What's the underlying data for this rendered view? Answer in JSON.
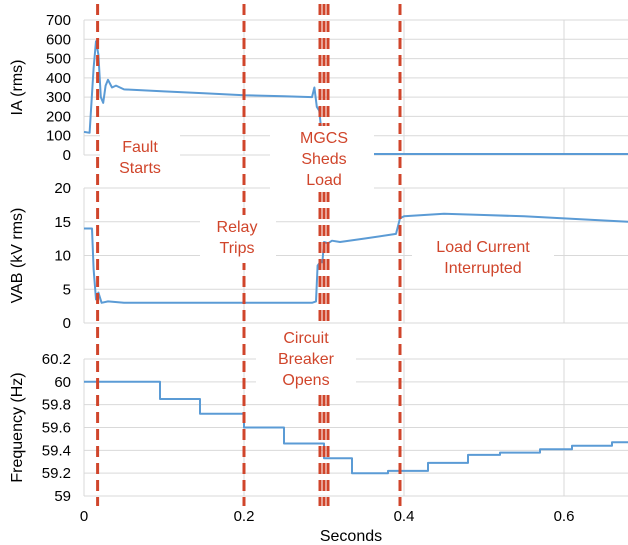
{
  "chart_data": {
    "type": "line",
    "xlabel": "Seconds",
    "x_ticks": [
      0,
      0.2,
      0.4,
      0.6
    ],
    "x_tick_labels": [
      "0",
      "0.2",
      "0.4",
      "0.6"
    ],
    "xlim": [
      0,
      0.68
    ],
    "series_color": "#5b9bd5",
    "event_line_color": "#d0452b",
    "event_times": [
      0.017,
      0.2,
      0.295,
      0.3,
      0.305,
      0.395
    ],
    "annotations": [
      {
        "id": "fault",
        "lines": [
          "Fault",
          "Starts"
        ]
      },
      {
        "id": "relay",
        "lines": [
          "Relay",
          "Trips"
        ]
      },
      {
        "id": "mgcs",
        "lines": [
          "MGCS",
          "Sheds",
          "Load"
        ]
      },
      {
        "id": "breaker",
        "lines": [
          "Circuit",
          "Breaker",
          "Opens"
        ]
      },
      {
        "id": "interrupt",
        "lines": [
          "Load Current",
          "Interrupted"
        ]
      }
    ],
    "panels": [
      {
        "id": "current",
        "ylabel": "IA (rms)",
        "ylim": [
          0,
          700
        ],
        "yticks": [
          0,
          100,
          200,
          300,
          400,
          500,
          600,
          700
        ],
        "ytick_labels": [
          "0",
          "100",
          "200",
          "300",
          "400",
          "500",
          "600",
          "700"
        ],
        "series": [
          {
            "x": [
              0,
              0.007,
              0.012,
              0.015,
              0.018,
              0.021,
              0.024,
              0.027,
              0.03,
              0.035,
              0.04,
              0.05,
              0.1,
              0.15,
              0.2,
              0.25,
              0.285,
              0.288,
              0.291,
              0.294,
              0.3,
              0.4,
              0.5,
              0.6,
              0.68
            ],
            "y": [
              120,
              115,
              450,
              590,
              520,
              300,
              270,
              360,
              390,
              350,
              360,
              340,
              330,
              320,
              310,
              305,
              300,
              350,
              250,
              230,
              5,
              5,
              5,
              5,
              5
            ]
          }
        ]
      },
      {
        "id": "voltage",
        "ylabel": "VAB (kV rms)",
        "ylim": [
          0,
          20
        ],
        "yticks": [
          0,
          5,
          10,
          15,
          20
        ],
        "ytick_labels": [
          "0",
          "5",
          "10",
          "15",
          "20"
        ],
        "series": [
          {
            "x": [
              0,
              0.01,
              0.012,
              0.015,
              0.018,
              0.022,
              0.03,
              0.05,
              0.1,
              0.2,
              0.25,
              0.285,
              0.29,
              0.292,
              0.295,
              0.298,
              0.3,
              0.305,
              0.31,
              0.32,
              0.35,
              0.39,
              0.395,
              0.4,
              0.45,
              0.5,
              0.55,
              0.6,
              0.68
            ],
            "y": [
              14,
              14,
              8,
              3.5,
              4.5,
              3.0,
              3.2,
              3.0,
              3.0,
              3.0,
              3.0,
              3.0,
              3.2,
              8.5,
              9.0,
              9.0,
              12.0,
              11.8,
              12.2,
              12.0,
              12.5,
              13.2,
              15.5,
              15.8,
              16.2,
              16.0,
              15.8,
              15.5,
              15.0
            ]
          }
        ]
      },
      {
        "id": "frequency",
        "ylabel": "Frequency (Hz)",
        "ylim": [
          59,
          60.2
        ],
        "yticks": [
          59,
          59.2,
          59.4,
          59.6,
          59.8,
          60,
          60.2
        ],
        "ytick_labels": [
          "59",
          "59.2",
          "59.4",
          "59.6",
          "59.8",
          "60",
          "60.2"
        ],
        "series": [
          {
            "x": [
              0,
              0.095,
              0.095,
              0.145,
              0.145,
              0.2,
              0.2,
              0.25,
              0.25,
              0.3,
              0.3,
              0.335,
              0.335,
              0.38,
              0.38,
              0.43,
              0.43,
              0.48,
              0.48,
              0.52,
              0.52,
              0.57,
              0.57,
              0.61,
              0.61,
              0.66,
              0.66,
              0.68
            ],
            "y": [
              60,
              60,
              59.85,
              59.85,
              59.72,
              59.72,
              59.6,
              59.6,
              59.46,
              59.46,
              59.33,
              59.33,
              59.2,
              59.2,
              59.22,
              59.22,
              59.29,
              59.29,
              59.36,
              59.36,
              59.38,
              59.38,
              59.41,
              59.41,
              59.44,
              59.44,
              59.47,
              59.47
            ]
          }
        ]
      }
    ]
  }
}
